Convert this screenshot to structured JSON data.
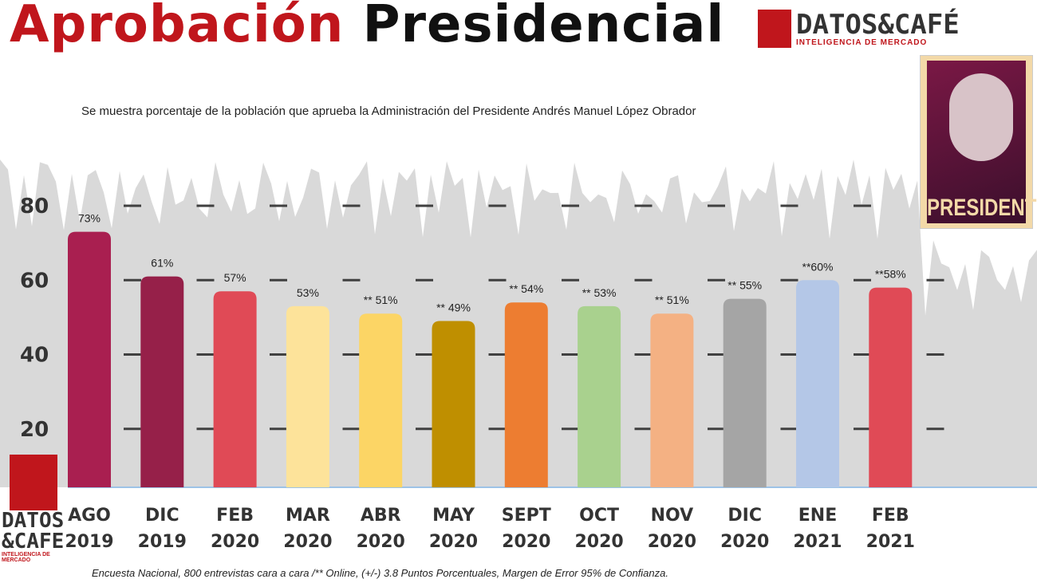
{
  "header": {
    "title_part1": "Aprobación",
    "title_part2": "Presidencial"
  },
  "brand": {
    "name": "DATOS&CAFÉ",
    "tagline": "INTELIGENCIA DE MERCADO",
    "name_stacked_1": "DATOS",
    "name_stacked_2": "&CAFE",
    "color": "#c0161c"
  },
  "photo": {
    "caption": "PRESIDENTE"
  },
  "footer": {
    "note": "Encuesta Nacional, 800 entrevistas cara a cara /** Online, (+/-) 3.8 Puntos Porcentuales, Margen de Error 95% de Confianza."
  },
  "chart_data": {
    "type": "bar",
    "title": "",
    "subtitle": "Se muestra porcentaje de la población que aprueba la Administración del Presidente Andrés Manuel López Obrador",
    "categories": [
      [
        "AGO",
        "2019"
      ],
      [
        "DIC",
        "2019"
      ],
      [
        "FEB",
        "2020"
      ],
      [
        "MAR",
        "2020"
      ],
      [
        "ABR",
        "2020"
      ],
      [
        "MAY",
        "2020"
      ],
      [
        "SEPT",
        "2020"
      ],
      [
        "OCT",
        "2020"
      ],
      [
        "NOV",
        "2020"
      ],
      [
        "DIC",
        "2020"
      ],
      [
        "ENE",
        "2021"
      ],
      [
        "FEB",
        "2021"
      ]
    ],
    "values": [
      73,
      61,
      57,
      53,
      51,
      49,
      54,
      53,
      51,
      55,
      60,
      58
    ],
    "data_labels": [
      "73%",
      "61%",
      "57%",
      "53%",
      "** 51%",
      "** 49%",
      "** 54%",
      "** 53%",
      "** 51%",
      "** 55%",
      "**60%",
      "**58%"
    ],
    "colors": [
      "#a91f50",
      "#962049",
      "#e04a56",
      "#fde39a",
      "#fcd565",
      "#bf8f00",
      "#ed7d31",
      "#a9d18e",
      "#f4b183",
      "#a5a5a5",
      "#b4c7e7",
      "#e04a56"
    ],
    "yticks": [
      20,
      40,
      60,
      80
    ],
    "ylim": [
      0,
      85
    ],
    "grid": true,
    "xlabel": "",
    "ylabel": ""
  }
}
